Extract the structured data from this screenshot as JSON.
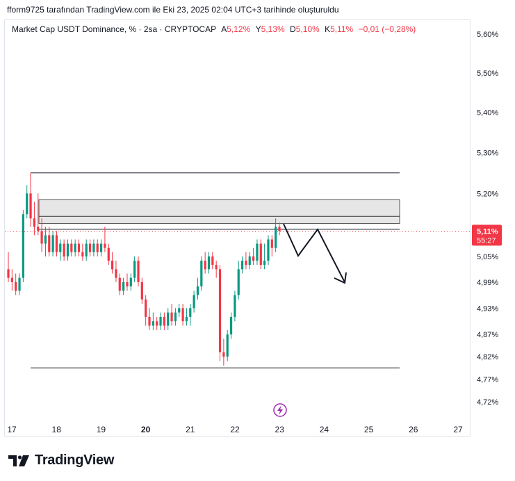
{
  "header": {
    "caption": "fform9725 tarafından TradingView.com ile Eki 23, 2025 02:04 UTC+3 tarihinde oluşturuldu"
  },
  "legend": {
    "symbol": "Market Cap USDT Dominance, % · 2sa · CRYPTOCAP",
    "a_label": "A",
    "a_value": "5,12%",
    "y_label": "Y",
    "y_value": "5,13%",
    "d_label": "D",
    "d_value": "5,10%",
    "k_label": "K",
    "k_value": "5,11%",
    "change": "−0,01 (−0,28%)"
  },
  "price_badge": {
    "price": "5,11%",
    "countdown": "55:27"
  },
  "footer": {
    "brand": "TradingView"
  },
  "colors": {
    "up": "#089981",
    "down": "#f23645",
    "badge": "#f23645",
    "zone_fill": "#e6e6e6"
  },
  "chart_data": {
    "type": "candlestick",
    "y_axis": {
      "ticks": [
        5.6,
        5.5,
        5.4,
        5.3,
        5.2,
        5.11,
        5.05,
        4.99,
        4.93,
        4.87,
        4.82,
        4.77,
        4.72
      ],
      "tick_labels": [
        "5,60%",
        "5,50%",
        "5,40%",
        "5,30%",
        "5,20%",
        "5,11%",
        "5,05%",
        "4,99%",
        "4,93%",
        "4,87%",
        "4,82%",
        "4,77%",
        "4,72%"
      ],
      "scale": "log",
      "range": [
        4.7,
        5.64
      ]
    },
    "x_axis": {
      "ticks": [
        "17",
        "18",
        "19",
        "20",
        "21",
        "22",
        "23",
        "24",
        "25",
        "26",
        "27"
      ],
      "bold": [
        "20"
      ],
      "range": [
        17,
        27
      ]
    },
    "last_price": 5.11,
    "candles": [
      {
        "o": 5.02,
        "h": 5.06,
        "l": 4.99,
        "c": 5.0
      },
      {
        "o": 5.0,
        "h": 5.02,
        "l": 4.97,
        "c": 4.99
      },
      {
        "o": 4.99,
        "h": 5.01,
        "l": 4.96,
        "c": 4.97
      },
      {
        "o": 4.97,
        "h": 5.01,
        "l": 4.96,
        "c": 5.0
      },
      {
        "o": 5.0,
        "h": 5.16,
        "l": 4.99,
        "c": 5.15
      },
      {
        "o": 5.15,
        "h": 5.22,
        "l": 5.14,
        "c": 5.2
      },
      {
        "o": 5.2,
        "h": 5.25,
        "l": 5.12,
        "c": 5.14
      },
      {
        "o": 5.14,
        "h": 5.18,
        "l": 5.1,
        "c": 5.12
      },
      {
        "o": 5.12,
        "h": 5.2,
        "l": 5.1,
        "c": 5.11
      },
      {
        "o": 5.11,
        "h": 5.14,
        "l": 5.06,
        "c": 5.08
      },
      {
        "o": 5.08,
        "h": 5.12,
        "l": 5.05,
        "c": 5.1
      },
      {
        "o": 5.1,
        "h": 5.12,
        "l": 5.05,
        "c": 5.06
      },
      {
        "o": 5.06,
        "h": 5.11,
        "l": 5.05,
        "c": 5.1
      },
      {
        "o": 5.1,
        "h": 5.11,
        "l": 5.05,
        "c": 5.06
      },
      {
        "o": 5.06,
        "h": 5.09,
        "l": 5.04,
        "c": 5.08
      },
      {
        "o": 5.08,
        "h": 5.09,
        "l": 5.04,
        "c": 5.05
      },
      {
        "o": 5.05,
        "h": 5.09,
        "l": 5.04,
        "c": 5.08
      },
      {
        "o": 5.08,
        "h": 5.09,
        "l": 5.05,
        "c": 5.06
      },
      {
        "o": 5.06,
        "h": 5.09,
        "l": 5.05,
        "c": 5.08
      },
      {
        "o": 5.08,
        "h": 5.09,
        "l": 5.05,
        "c": 5.06
      },
      {
        "o": 5.06,
        "h": 5.08,
        "l": 5.04,
        "c": 5.05
      },
      {
        "o": 5.05,
        "h": 5.09,
        "l": 5.04,
        "c": 5.08
      },
      {
        "o": 5.08,
        "h": 5.09,
        "l": 5.05,
        "c": 5.06
      },
      {
        "o": 5.06,
        "h": 5.09,
        "l": 5.05,
        "c": 5.08
      },
      {
        "o": 5.08,
        "h": 5.09,
        "l": 5.05,
        "c": 5.06
      },
      {
        "o": 5.06,
        "h": 5.09,
        "l": 5.05,
        "c": 5.08
      },
      {
        "o": 5.08,
        "h": 5.12,
        "l": 5.06,
        "c": 5.07
      },
      {
        "o": 5.07,
        "h": 5.08,
        "l": 5.03,
        "c": 5.04
      },
      {
        "o": 5.04,
        "h": 5.06,
        "l": 5.01,
        "c": 5.02
      },
      {
        "o": 5.02,
        "h": 5.04,
        "l": 4.99,
        "c": 5.0
      },
      {
        "o": 5.0,
        "h": 5.01,
        "l": 4.96,
        "c": 4.97
      },
      {
        "o": 4.97,
        "h": 5.0,
        "l": 4.96,
        "c": 4.99
      },
      {
        "o": 4.99,
        "h": 5.01,
        "l": 4.97,
        "c": 4.98
      },
      {
        "o": 4.98,
        "h": 5.01,
        "l": 4.97,
        "c": 5.0
      },
      {
        "o": 5.0,
        "h": 5.05,
        "l": 4.99,
        "c": 5.04
      },
      {
        "o": 5.04,
        "h": 5.05,
        "l": 4.98,
        "c": 4.99
      },
      {
        "o": 4.99,
        "h": 5.0,
        "l": 4.94,
        "c": 4.95
      },
      {
        "o": 4.95,
        "h": 4.96,
        "l": 4.89,
        "c": 4.91
      },
      {
        "o": 4.91,
        "h": 4.93,
        "l": 4.88,
        "c": 4.89
      },
      {
        "o": 4.89,
        "h": 4.92,
        "l": 4.88,
        "c": 4.9
      },
      {
        "o": 4.9,
        "h": 4.91,
        "l": 4.88,
        "c": 4.89
      },
      {
        "o": 4.89,
        "h": 4.92,
        "l": 4.88,
        "c": 4.91
      },
      {
        "o": 4.91,
        "h": 4.92,
        "l": 4.88,
        "c": 4.89
      },
      {
        "o": 4.89,
        "h": 4.93,
        "l": 4.88,
        "c": 4.92
      },
      {
        "o": 4.92,
        "h": 4.94,
        "l": 4.89,
        "c": 4.9
      },
      {
        "o": 4.9,
        "h": 4.93,
        "l": 4.89,
        "c": 4.92
      },
      {
        "o": 4.92,
        "h": 4.94,
        "l": 4.91,
        "c": 4.93
      },
      {
        "o": 4.93,
        "h": 4.94,
        "l": 4.89,
        "c": 4.9
      },
      {
        "o": 4.9,
        "h": 4.93,
        "l": 4.89,
        "c": 4.91
      },
      {
        "o": 4.91,
        "h": 4.94,
        "l": 4.89,
        "c": 4.93
      },
      {
        "o": 4.93,
        "h": 4.97,
        "l": 4.92,
        "c": 4.96
      },
      {
        "o": 4.96,
        "h": 5.0,
        "l": 4.95,
        "c": 4.98
      },
      {
        "o": 4.98,
        "h": 5.05,
        "l": 4.97,
        "c": 5.04
      },
      {
        "o": 5.04,
        "h": 5.06,
        "l": 5.01,
        "c": 5.02
      },
      {
        "o": 5.02,
        "h": 5.06,
        "l": 5.01,
        "c": 5.05
      },
      {
        "o": 5.05,
        "h": 5.06,
        "l": 5.02,
        "c": 5.03
      },
      {
        "o": 5.03,
        "h": 5.04,
        "l": 5.0,
        "c": 5.02
      },
      {
        "o": 5.02,
        "h": 5.03,
        "l": 4.81,
        "c": 4.83
      },
      {
        "o": 4.83,
        "h": 4.86,
        "l": 4.8,
        "c": 4.82
      },
      {
        "o": 4.82,
        "h": 4.88,
        "l": 4.81,
        "c": 4.87
      },
      {
        "o": 4.87,
        "h": 4.92,
        "l": 4.86,
        "c": 4.91
      },
      {
        "o": 4.91,
        "h": 4.97,
        "l": 4.9,
        "c": 4.96
      },
      {
        "o": 4.96,
        "h": 5.04,
        "l": 4.95,
        "c": 5.02
      },
      {
        "o": 5.02,
        "h": 5.05,
        "l": 5.01,
        "c": 5.04
      },
      {
        "o": 5.04,
        "h": 5.06,
        "l": 5.02,
        "c": 5.03
      },
      {
        "o": 5.03,
        "h": 5.06,
        "l": 5.02,
        "c": 5.05
      },
      {
        "o": 5.05,
        "h": 5.07,
        "l": 5.03,
        "c": 5.04
      },
      {
        "o": 5.04,
        "h": 5.09,
        "l": 5.03,
        "c": 5.08
      },
      {
        "o": 5.08,
        "h": 5.09,
        "l": 5.02,
        "c": 5.03
      },
      {
        "o": 5.03,
        "h": 5.08,
        "l": 5.02,
        "c": 5.04
      },
      {
        "o": 5.04,
        "h": 5.1,
        "l": 5.03,
        "c": 5.09
      },
      {
        "o": 5.09,
        "h": 5.1,
        "l": 5.05,
        "c": 5.07
      },
      {
        "o": 5.07,
        "h": 5.14,
        "l": 5.06,
        "c": 5.12
      },
      {
        "o": 5.12,
        "h": 5.13,
        "l": 5.1,
        "c": 5.11
      }
    ],
    "annotations": {
      "resistance_line": 5.25,
      "support_line": 4.795,
      "zone": [
        5.128,
        5.185
      ],
      "zone_mid": 5.145,
      "level_line": 5.114
    }
  }
}
